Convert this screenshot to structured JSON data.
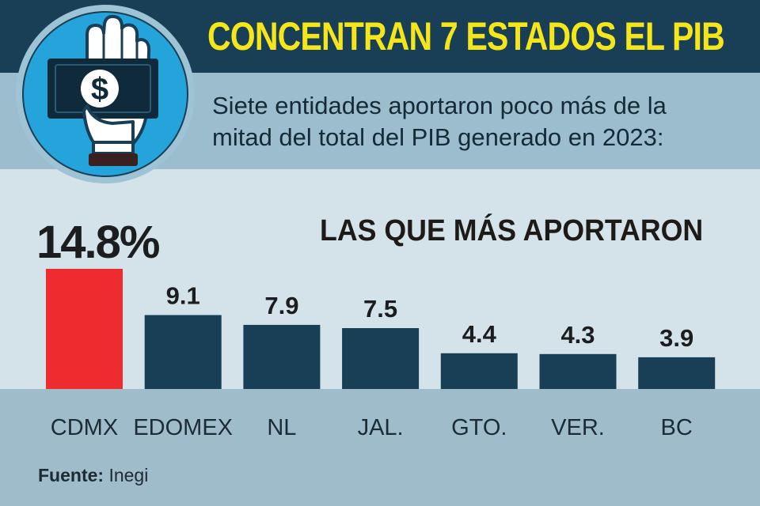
{
  "header": {
    "title": "CONCENTRAN 7 ESTADOS EL PIB",
    "subtitle": "Siete entidades aportaron poco más de la mitad del total del PIB generado en 2023:"
  },
  "logo": {
    "icon": "hand-holding-dollar-icon",
    "glyph": "$"
  },
  "section_heading": "LAS QUE MÁS APORTARON",
  "chart_data": {
    "type": "bar",
    "title": "",
    "xlabel": "",
    "ylabel": "",
    "categories": [
      "CDMX",
      "EDOMEX",
      "NL",
      "JAL.",
      "GTO.",
      "VER.",
      "BC"
    ],
    "values": [
      14.8,
      9.1,
      7.9,
      7.5,
      4.4,
      4.3,
      3.9
    ],
    "value_labels": [
      "14.8%",
      "9.1",
      "7.9",
      "7.5",
      "4.4",
      "4.3",
      "3.9"
    ],
    "ylim": [
      0,
      14.8
    ],
    "grid": false,
    "legend": "none",
    "highlight_index": 0,
    "colors": {
      "bar": "#183f55",
      "highlight": "#ee2b2f"
    }
  },
  "source": {
    "label": "Fuente:",
    "value": "Inegi"
  },
  "colors": {
    "header": "#183f55",
    "title": "#f5e51b",
    "panel": "#d4e3e9",
    "band": "#9fbccb"
  }
}
